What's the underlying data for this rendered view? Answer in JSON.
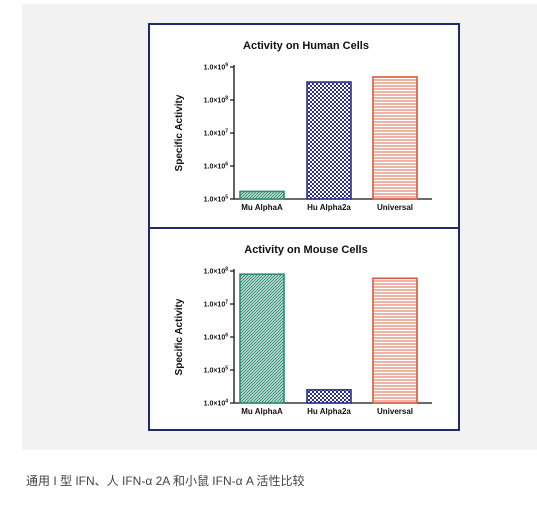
{
  "caption": "通用 I 型 IFN、人 IFN-α 2A 和小鼠 IFN-α A 活性比较",
  "colors": {
    "frame": "#1f2a6b",
    "mu_alpha_a": "#2e8b6e",
    "hu_alpha_2a": "#2b2f8c",
    "universal": "#d9593b"
  },
  "chart_data": [
    {
      "type": "bar",
      "title": "Activity on Human Cells",
      "ylabel": "Specific Activity",
      "yscale": "log",
      "ylim": [
        100000,
        1000000000
      ],
      "yticks": [
        100000,
        1000000,
        10000000,
        100000000,
        1000000000
      ],
      "ytick_labels": [
        {
          "mantissa": "1.0×10",
          "exp": "5"
        },
        {
          "mantissa": "1.0×10",
          "exp": "6"
        },
        {
          "mantissa": "1.0×10",
          "exp": "7"
        },
        {
          "mantissa": "1.0×10",
          "exp": "8"
        },
        {
          "mantissa": "1.0×10",
          "exp": "9"
        }
      ],
      "categories": [
        "Mu AlphaA",
        "Hu Alpha2a",
        "Universal"
      ],
      "values": [
        170000,
        350000000,
        500000000
      ],
      "patterns": [
        "dense-diagonal",
        "checker",
        "horizontal-lines"
      ],
      "grid": false
    },
    {
      "type": "bar",
      "title": "Activity on Mouse Cells",
      "ylabel": "Specific Activity",
      "yscale": "log",
      "ylim": [
        10000,
        100000000
      ],
      "yticks": [
        10000,
        100000,
        1000000,
        10000000,
        100000000
      ],
      "ytick_labels": [
        {
          "mantissa": "1.0×10",
          "exp": "4"
        },
        {
          "mantissa": "1.0×10",
          "exp": "5"
        },
        {
          "mantissa": "1.0×10",
          "exp": "6"
        },
        {
          "mantissa": "1.0×10",
          "exp": "7"
        },
        {
          "mantissa": "1.0×10",
          "exp": "8"
        }
      ],
      "categories": [
        "Mu AlphaA",
        "Hu Alpha2a",
        "Universal"
      ],
      "values": [
        80000000,
        25000,
        60000000
      ],
      "patterns": [
        "dense-diagonal",
        "checker",
        "horizontal-lines"
      ],
      "grid": false
    }
  ]
}
